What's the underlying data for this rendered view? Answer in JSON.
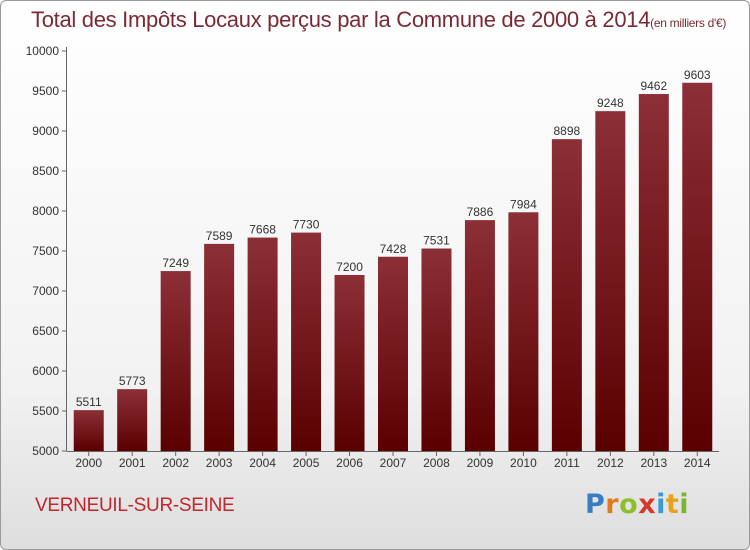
{
  "header": {
    "title": "Total des Impôts Locaux perçus par la Commune de 2000 à 2014",
    "unit": "(en milliers d'€)"
  },
  "footer": {
    "commune": "VERNEUIL-SUR-SEINE",
    "logo_letters": [
      "P",
      "r",
      "o",
      "x",
      "i",
      "t",
      "i"
    ],
    "logo_colors": [
      "#3a7cc2",
      "#e07a1f",
      "#8dbf2a",
      "#d33a2c",
      "#3a9ad9",
      "#e8a21a",
      "#7ab62c"
    ]
  },
  "colors": {
    "bar_top": "#8c2f37",
    "bar_bottom": "#5a0000",
    "title": "#7b2a33",
    "commune": "#c1272d"
  },
  "chart_data": {
    "type": "bar",
    "categories": [
      "2000",
      "2001",
      "2002",
      "2003",
      "2004",
      "2005",
      "2006",
      "2007",
      "2008",
      "2009",
      "2010",
      "2011",
      "2012",
      "2013",
      "2014"
    ],
    "values": [
      5511,
      5773,
      7249,
      7589,
      7668,
      7730,
      7200,
      7428,
      7531,
      7886,
      7984,
      8898,
      9248,
      9462,
      9603
    ],
    "title": "Total des Impôts Locaux perçus par la Commune de 2000 à 2014",
    "ylim": [
      5000,
      10000
    ],
    "yticks": [
      5000,
      5500,
      6000,
      6500,
      7000,
      7500,
      8000,
      8500,
      9000,
      9500,
      10000
    ],
    "grid": false
  }
}
